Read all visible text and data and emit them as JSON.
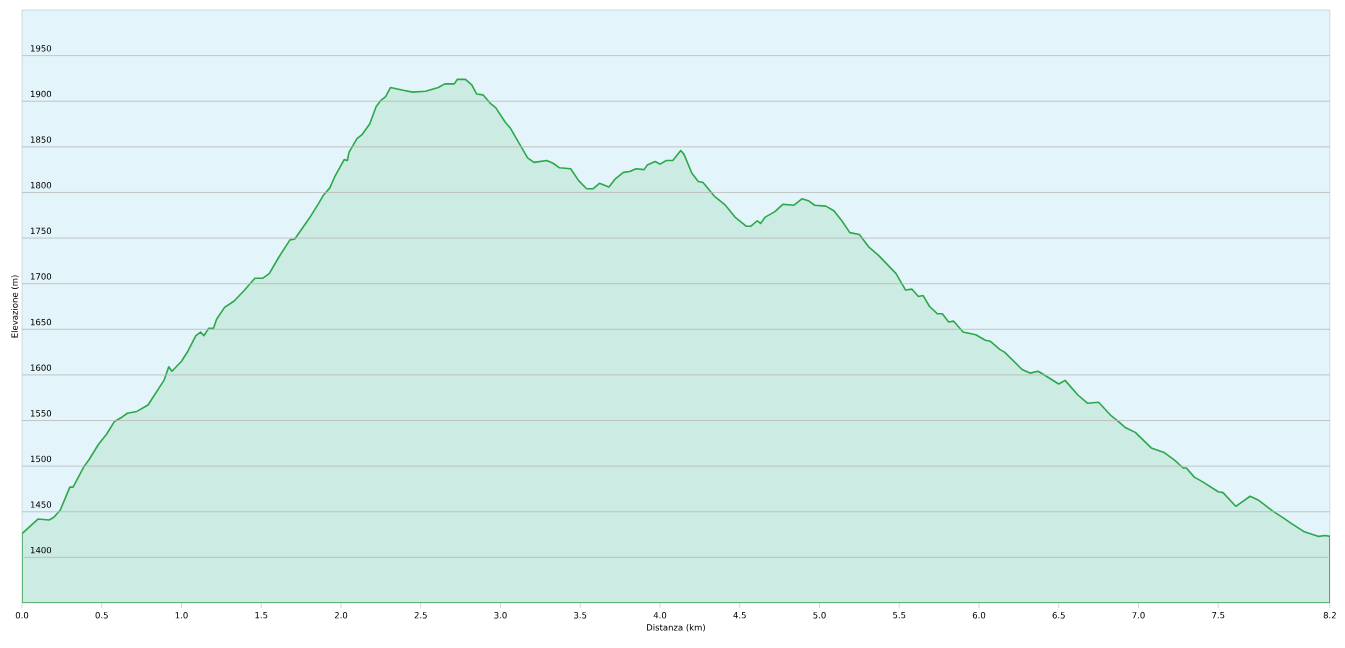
{
  "chart_data": {
    "type": "area",
    "xlabel": "Distanza  (km)",
    "ylabel": "Elevazione (m)",
    "color": "#2ca84a",
    "grid": "y",
    "xlim": [
      0,
      8.2
    ],
    "ylim": [
      1350,
      2000
    ],
    "xticks": [
      {
        "value": 0,
        "label": "0.0"
      },
      0.5,
      {
        "value": 1,
        "label": "1.0"
      },
      1.5,
      {
        "value": 2,
        "label": "2.0"
      },
      2.5,
      {
        "value": 3,
        "label": "3.0"
      },
      3.5,
      {
        "value": 4,
        "label": "4.0"
      },
      4.5,
      {
        "value": 5,
        "label": "5.0"
      },
      5.5,
      {
        "value": 6,
        "label": "6.0"
      },
      6.5,
      {
        "value": 7,
        "label": "7.0"
      },
      7.5,
      8.2
    ],
    "yticks": [
      1400,
      1450,
      1500,
      1550,
      1600,
      1650,
      1700,
      1750,
      1800,
      1850,
      1900,
      1950
    ],
    "x": [
      0,
      0.1,
      0.17,
      0.2,
      0.24,
      0.3,
      0.32,
      0.39,
      0.42,
      0.48,
      0.53,
      0.58,
      0.62,
      0.66,
      0.72,
      0.79,
      0.89,
      0.92,
      0.94,
      1.0,
      1.04,
      1.09,
      1.12,
      1.14,
      1.17,
      1.2,
      1.22,
      1.27,
      1.33,
      1.39,
      1.46,
      1.51,
      1.55,
      1.61,
      1.68,
      1.71,
      1.81,
      1.86,
      1.89,
      1.93,
      1.96,
      2.02,
      2.04,
      2.05,
      2.1,
      2.13,
      2.18,
      2.22,
      2.25,
      2.28,
      2.31,
      2.39,
      2.45,
      2.53,
      2.61,
      2.65,
      2.71,
      2.73,
      2.78,
      2.82,
      2.85,
      2.89,
      2.94,
      2.97,
      3.03,
      3.06,
      3.12,
      3.17,
      3.21,
      3.29,
      3.33,
      3.37,
      3.44,
      3.49,
      3.54,
      3.58,
      3.62,
      3.68,
      3.72,
      3.77,
      3.81,
      3.85,
      3.9,
      3.92,
      3.97,
      4.0,
      4.04,
      4.08,
      4.13,
      4.15,
      4.2,
      4.24,
      4.27,
      4.34,
      4.41,
      4.47,
      4.54,
      4.57,
      4.61,
      4.63,
      4.66,
      4.72,
      4.77,
      4.84,
      4.89,
      4.93,
      4.97,
      5.04,
      5.09,
      5.14,
      5.19,
      5.25,
      5.31,
      5.37,
      5.42,
      5.48,
      5.54,
      5.58,
      5.62,
      5.65,
      5.69,
      5.74,
      5.77,
      5.81,
      5.84,
      5.9,
      5.98,
      6.04,
      6.07,
      6.13,
      6.16,
      6.27,
      6.32,
      6.37,
      6.4,
      6.5,
      6.54,
      6.62,
      6.68,
      6.75,
      6.83,
      6.86,
      6.92,
      6.98,
      7.08,
      7.16,
      7.23,
      7.28,
      7.3,
      7.35,
      7.4,
      7.5,
      7.53,
      7.61,
      7.7,
      7.75,
      7.84,
      7.91,
      7.96,
      8.04,
      8.13,
      8.17,
      8.2
    ],
    "values": [
      1426,
      1442,
      1441,
      1444,
      1452,
      1477,
      1477,
      1500,
      1507,
      1524,
      1535,
      1549,
      1553,
      1558,
      1560,
      1567,
      1594,
      1609,
      1604,
      1615,
      1626,
      1643,
      1647,
      1643,
      1651,
      1651,
      1661,
      1674,
      1681,
      1692,
      1706,
      1706,
      1711,
      1729,
      1748,
      1749,
      1774,
      1788,
      1797,
      1805,
      1817,
      1836,
      1835,
      1844,
      1859,
      1863,
      1875,
      1894,
      1901,
      1905,
      1915,
      1912,
      1910,
      1911,
      1915,
      1919,
      1919,
      1924,
      1924,
      1918,
      1908,
      1907,
      1897,
      1893,
      1877,
      1871,
      1853,
      1838,
      1833,
      1835,
      1832,
      1827,
      1826,
      1813,
      1804,
      1804,
      1810,
      1806,
      1815,
      1822,
      1823,
      1826,
      1825,
      1830,
      1834,
      1831,
      1835,
      1835,
      1846,
      1842,
      1821,
      1812,
      1811,
      1796,
      1786,
      1773,
      1763,
      1763,
      1769,
      1766,
      1773,
      1779,
      1787,
      1786,
      1793,
      1791,
      1786,
      1785,
      1780,
      1769,
      1756,
      1754,
      1740,
      1731,
      1722,
      1711,
      1693,
      1694,
      1686,
      1687,
      1675,
      1667,
      1667,
      1658,
      1659,
      1647,
      1644,
      1638,
      1637,
      1628,
      1625,
      1606,
      1602,
      1604,
      1601,
      1590,
      1594,
      1578,
      1569,
      1570,
      1555,
      1551,
      1542,
      1537,
      1520,
      1515,
      1506,
      1498,
      1498,
      1488,
      1483,
      1472,
      1471,
      1456,
      1467,
      1463,
      1451,
      1443,
      1437,
      1428,
      1423,
      1424,
      1423
    ]
  }
}
